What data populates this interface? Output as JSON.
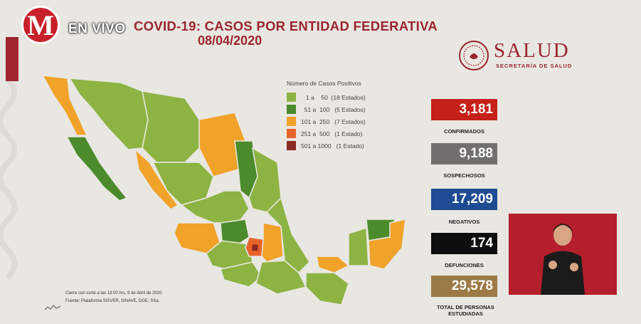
{
  "header": {
    "logo_letter": "M",
    "live_label": "EN VIVO",
    "title": "COVID-19: CASOS POR ENTIDAD FEDERATIVA",
    "date": "08/04/2020"
  },
  "brand": {
    "name": "SALUD",
    "subtitle": "SECRETARÍA DE SALUD"
  },
  "legend": {
    "title": "Número de Casos Positivos",
    "items": [
      {
        "label": "   1 a    50  (18 Estados)",
        "color": "#8db443"
      },
      {
        "label": "  51 a  100   (5 Estados)",
        "color": "#4c8b2b"
      },
      {
        "label": "101 a  250   (7 Estados)",
        "color": "#f1a229"
      },
      {
        "label": "251 a  500   (1 Estado)",
        "color": "#e8632a"
      },
      {
        "label": "501 a 1000   (1 Estado)",
        "color": "#8a2a20"
      }
    ]
  },
  "stats": [
    {
      "value": "3,181",
      "label": "CONFIRMADOS",
      "color": "#c6201a"
    },
    {
      "value": "9,188",
      "label": "SOSPECHOSOS",
      "color": "#706f6c"
    },
    {
      "value": "17,209",
      "label": "NEGATIVOS",
      "color": "#1f4b93"
    },
    {
      "value": "174",
      "label": "DEFUNCIONES",
      "color": "#0e0e0e"
    },
    {
      "value": "29,578",
      "label": "TOTAL DE PERSONAS ESTUDIADAS",
      "color": "#9c7a45"
    }
  ],
  "footnote": {
    "line1": "Cierre con corte a las 13:00 hrs, 8 de Abril de 2020",
    "line2": "Fuente: Plataforma SISVER, SINAVE, DGE, SSa."
  },
  "colors": {
    "green_light": "#8db443",
    "green_dark": "#4c8b2b",
    "orange": "#f1a229",
    "orange_dark": "#e8632a",
    "brown": "#8a2a20",
    "brand_red": "#9a2530"
  }
}
